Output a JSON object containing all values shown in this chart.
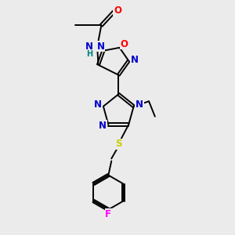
{
  "background_color": "#ebebeb",
  "fig_size": [
    3.0,
    3.0
  ],
  "dpi": 100,
  "colors": {
    "C": "#000000",
    "N": "#0000cc",
    "O": "#ff0000",
    "S": "#cccc00",
    "F": "#ff00ff",
    "H": "#008080",
    "bond": "#000000"
  },
  "lw": 1.4,
  "fs": 8.5,
  "fs_small": 7.0
}
